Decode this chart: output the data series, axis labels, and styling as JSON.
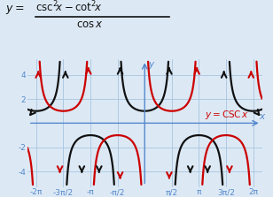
{
  "xlim": [
    -6.8,
    6.8
  ],
  "ylim": [
    -5.3,
    5.3
  ],
  "xtick_vals": [
    -6.283185,
    -4.712389,
    -3.141593,
    -1.570796,
    1.570796,
    3.141593,
    4.712389,
    6.283185
  ],
  "xtick_labels": [
    "-2π",
    "-3π/2",
    "-π",
    "-π/2",
    "π/2",
    "π",
    "3π/2",
    "2π"
  ],
  "ytick_vals": [
    -4,
    -2,
    2,
    4
  ],
  "ytick_labels": [
    "-4",
    "-2",
    "2",
    "4"
  ],
  "bg_color": "#dce9f5",
  "grid_color": "#a8c4e0",
  "axis_color": "#5588cc",
  "black_color": "#111111",
  "red_color": "#cc0000",
  "pi": 3.14159265358979
}
